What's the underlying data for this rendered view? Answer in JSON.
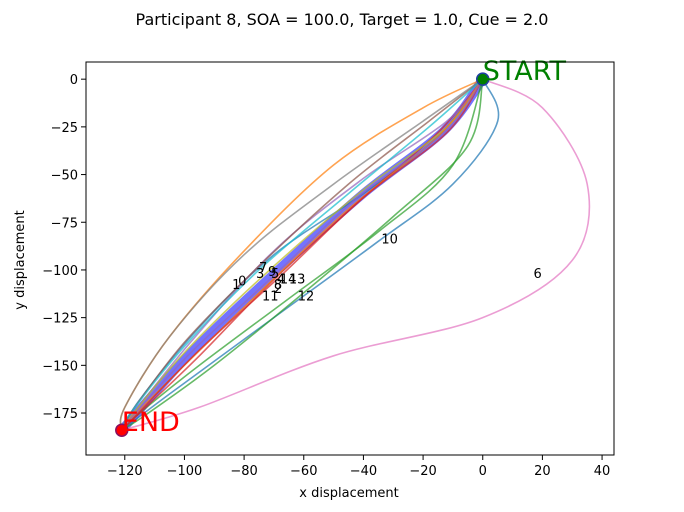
{
  "chart_data": {
    "type": "line",
    "title": "Participant 8, SOA = 100.0, Target = 1.0, Cue = 2.0",
    "xlabel": "x displacement",
    "ylabel": "y displacement",
    "xlim": [
      -133,
      44
    ],
    "ylim": [
      -197,
      9
    ],
    "xticks": [
      -120,
      -100,
      -80,
      -60,
      -40,
      -20,
      0,
      20,
      40
    ],
    "yticks": [
      0,
      -25,
      -50,
      -75,
      -100,
      -125,
      -150,
      -175
    ],
    "xtick_labels": [
      "−120",
      "−100",
      "−80",
      "−60",
      "−40",
      "−20",
      "0",
      "20",
      "40"
    ],
    "ytick_labels": [
      "0",
      "−25",
      "−50",
      "−75",
      "−100",
      "−125",
      "−150",
      "−175"
    ],
    "grid": false,
    "start": {
      "label": "START",
      "x": 0,
      "y": 0,
      "color": "#008000"
    },
    "end": {
      "label": "END",
      "x": -121,
      "y": -184,
      "color": "#ff0000"
    },
    "series": [
      {
        "label": "0",
        "color": "#1f77b4",
        "points": [
          [
            0,
            0
          ],
          [
            -15,
            -30
          ],
          [
            -40,
            -60
          ],
          [
            -70,
            -92
          ],
          [
            -95,
            -130
          ],
          [
            -115,
            -168
          ],
          [
            -121,
            -184
          ]
        ]
      },
      {
        "label": "1",
        "color": "#ff7f0e",
        "points": [
          [
            0,
            0
          ],
          [
            -20,
            -15
          ],
          [
            -50,
            -45
          ],
          [
            -80,
            -90
          ],
          [
            -105,
            -135
          ],
          [
            -120,
            -172
          ],
          [
            -121,
            -184
          ]
        ]
      },
      {
        "label": "2",
        "color": "#2ca02c",
        "points": [
          [
            0,
            0
          ],
          [
            -10,
            -45
          ],
          [
            -35,
            -80
          ],
          [
            -65,
            -115
          ],
          [
            -95,
            -150
          ],
          [
            -115,
            -175
          ],
          [
            -121,
            -184
          ]
        ]
      },
      {
        "label": "3",
        "color": "#d62728",
        "points": [
          [
            0,
            0
          ],
          [
            -15,
            -28
          ],
          [
            -40,
            -62
          ],
          [
            -70,
            -105
          ],
          [
            -95,
            -145
          ],
          [
            -115,
            -175
          ],
          [
            -121,
            -184
          ]
        ]
      },
      {
        "label": "4",
        "color": "#9467bd",
        "points": [
          [
            0,
            0
          ],
          [
            -12,
            -22
          ],
          [
            -40,
            -52
          ],
          [
            -70,
            -90
          ],
          [
            -98,
            -138
          ],
          [
            -117,
            -175
          ],
          [
            -121,
            -184
          ]
        ]
      },
      {
        "label": "5",
        "color": "#8c564b",
        "points": [
          [
            0,
            0
          ],
          [
            -18,
            -22
          ],
          [
            -45,
            -55
          ],
          [
            -75,
            -98
          ],
          [
            -100,
            -138
          ],
          [
            -118,
            -175
          ],
          [
            -121,
            -184
          ]
        ]
      },
      {
        "label": "6",
        "color": "#e377c2",
        "points": [
          [
            0,
            0
          ],
          [
            20,
            -15
          ],
          [
            35,
            -55
          ],
          [
            30,
            -95
          ],
          [
            0,
            -125
          ],
          [
            -50,
            -145
          ],
          [
            -95,
            -172
          ],
          [
            -121,
            -184
          ]
        ]
      },
      {
        "label": "7",
        "color": "#7f7f7f",
        "points": [
          [
            0,
            0
          ],
          [
            -20,
            -22
          ],
          [
            -50,
            -55
          ],
          [
            -80,
            -92
          ],
          [
            -105,
            -135
          ],
          [
            -120,
            -172
          ],
          [
            -121,
            -184
          ]
        ]
      },
      {
        "label": "8",
        "color": "#bcbd22",
        "points": [
          [
            0,
            0
          ],
          [
            -12,
            -25
          ],
          [
            -40,
            -58
          ],
          [
            -70,
            -98
          ],
          [
            -98,
            -140
          ],
          [
            -117,
            -175
          ],
          [
            -121,
            -184
          ]
        ]
      },
      {
        "label": "9",
        "color": "#17becf",
        "points": [
          [
            0,
            0
          ],
          [
            -18,
            -25
          ],
          [
            -45,
            -60
          ],
          [
            -75,
            -100
          ],
          [
            -100,
            -140
          ],
          [
            -118,
            -175
          ],
          [
            -121,
            -184
          ]
        ]
      },
      {
        "label": "10",
        "color": "#1f77b4",
        "points": [
          [
            0,
            0
          ],
          [
            5,
            -22
          ],
          [
            -10,
            -55
          ],
          [
            -35,
            -85
          ],
          [
            -70,
            -125
          ],
          [
            -105,
            -165
          ],
          [
            -121,
            -184
          ]
        ]
      },
      {
        "label": "11",
        "color": "#ff7f0e",
        "points": [
          [
            0,
            0
          ],
          [
            -15,
            -30
          ],
          [
            -45,
            -68
          ],
          [
            -75,
            -112
          ],
          [
            -100,
            -150
          ],
          [
            -118,
            -178
          ],
          [
            -121,
            -184
          ]
        ]
      },
      {
        "label": "12",
        "color": "#2ca02c",
        "points": [
          [
            0,
            0
          ],
          [
            -5,
            -35
          ],
          [
            -30,
            -72
          ],
          [
            -60,
            -112
          ],
          [
            -90,
            -150
          ],
          [
            -113,
            -176
          ],
          [
            -121,
            -184
          ]
        ]
      },
      {
        "label": "13",
        "color": "#d62728",
        "points": [
          [
            0,
            0
          ],
          [
            -12,
            -28
          ],
          [
            -40,
            -62
          ],
          [
            -67,
            -102
          ],
          [
            -95,
            -142
          ],
          [
            -116,
            -176
          ],
          [
            -121,
            -184
          ]
        ]
      },
      {
        "label": "14",
        "color": "#9467bd",
        "points": [
          [
            0,
            0
          ],
          [
            -13,
            -28
          ],
          [
            -42,
            -62
          ],
          [
            -70,
            -103
          ],
          [
            -97,
            -142
          ],
          [
            -117,
            -176
          ],
          [
            -121,
            -184
          ]
        ]
      }
    ],
    "trial_labels": [
      {
        "text": "0",
        "x": -82,
        "y": -106
      },
      {
        "text": "1",
        "x": -84,
        "y": -108
      },
      {
        "text": "2",
        "x": -70,
        "y": -110
      },
      {
        "text": "3",
        "x": -76,
        "y": -102
      },
      {
        "text": "4",
        "x": -69,
        "y": -105
      },
      {
        "text": "5",
        "x": -71,
        "y": -102
      },
      {
        "text": "6",
        "x": 17,
        "y": -102
      },
      {
        "text": "7",
        "x": -75,
        "y": -99
      },
      {
        "text": "8",
        "x": -70,
        "y": -108
      },
      {
        "text": "9",
        "x": -72,
        "y": -101
      },
      {
        "text": "10",
        "x": -34,
        "y": -84
      },
      {
        "text": "11",
        "x": -74,
        "y": -114
      },
      {
        "text": "12",
        "x": -62,
        "y": -114
      },
      {
        "text": "13",
        "x": -65,
        "y": -105
      },
      {
        "text": "14",
        "x": -68,
        "y": -105
      }
    ],
    "mean_trajectory": {
      "color": "#0000ff",
      "points": [
        [
          0,
          0
        ],
        [
          -13,
          -27
        ],
        [
          -40,
          -60
        ],
        [
          -70,
          -102
        ],
        [
          -97,
          -142
        ],
        [
          -116,
          -175
        ],
        [
          -121,
          -184
        ]
      ]
    }
  }
}
